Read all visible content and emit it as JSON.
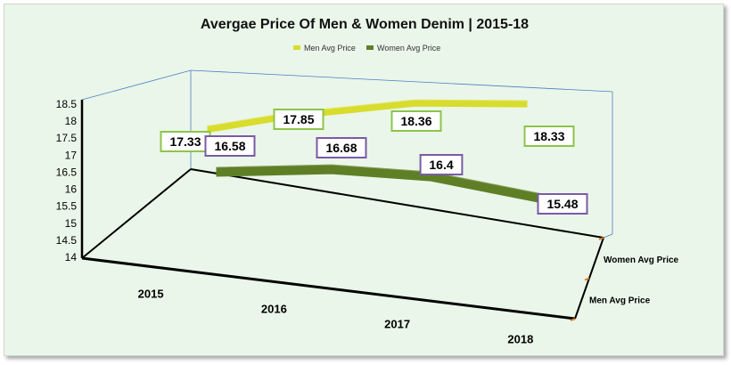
{
  "chart_data": {
    "type": "line",
    "title": "Avergae Price Of Men & Women Denim | 2015-18",
    "categories": [
      "2015",
      "2016",
      "2017",
      "2018"
    ],
    "series": [
      {
        "name": "Men Avg Price",
        "color": "#d8dc2c",
        "label_border": "#8dc44a",
        "values": [
          17.33,
          17.85,
          18.36,
          18.33
        ]
      },
      {
        "name": "Women Avg Price",
        "color": "#5f7f26",
        "label_border": "#7a5aa6",
        "values": [
          16.58,
          16.68,
          16.4,
          15.48
        ]
      }
    ],
    "series_axis": [
      "Women Avg Price",
      "Men Avg Price"
    ],
    "yticks": [
      "18.5",
      "18",
      "17.5",
      "17",
      "16.5",
      "16",
      "15.5",
      "15",
      "14.5",
      "14"
    ],
    "ylim": [
      14,
      18.5
    ],
    "legend_position": "top"
  }
}
